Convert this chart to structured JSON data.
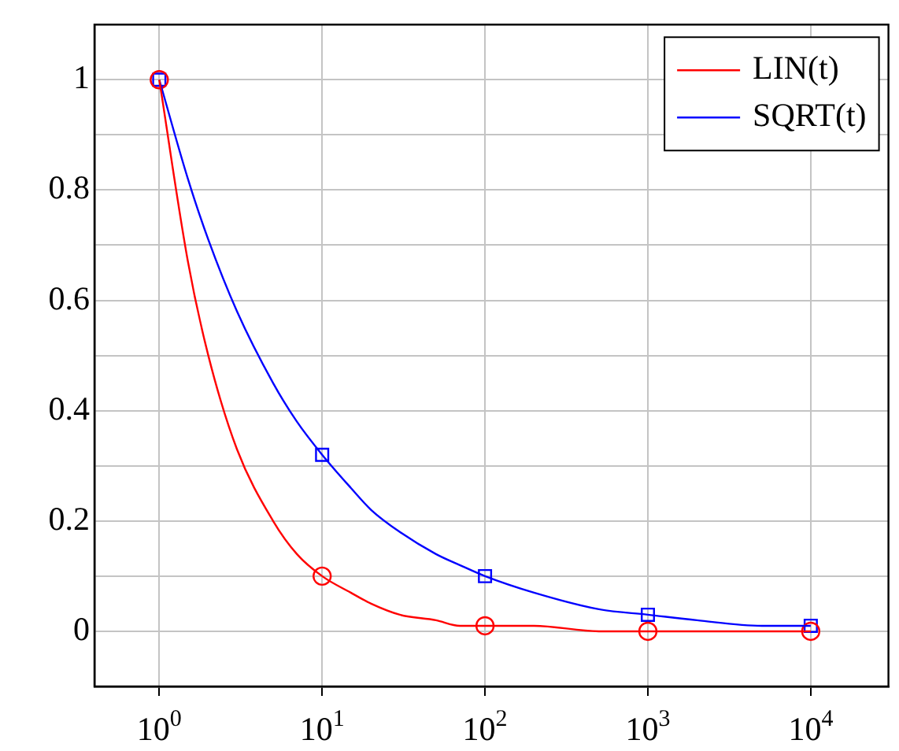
{
  "chart_data": {
    "type": "line",
    "log": "x",
    "grid": true,
    "legend": "top right",
    "xlim": [
      0.4,
      30000
    ],
    "xticks": [
      {
        "value": 1,
        "label": "10$^{0}$"
      },
      {
        "value": 10,
        "label": "10$^{1}$"
      },
      {
        "value": 100,
        "label": "10$^{2}$"
      },
      {
        "value": 1000,
        "label": "10$^{3}$"
      },
      {
        "value": 10000,
        "label": "10$^{4}$"
      }
    ],
    "ylim": [
      -0.1,
      1.1
    ],
    "yticks": [
      0,
      {
        "value": 0.1,
        "label": null
      },
      0.2,
      {
        "value": 0.3,
        "label": null
      },
      0.4,
      {
        "value": 0.5,
        "label": null
      },
      0.6,
      {
        "value": 0.7,
        "label": null
      },
      0.8,
      {
        "value": 0.9,
        "label": null
      },
      1
    ],
    "series": [
      {
        "name": "LIN(t)",
        "color": "#ff0000",
        "marker": "none",
        "x": [
          1,
          1.5,
          2,
          3,
          5,
          7,
          10,
          15,
          20,
          30,
          50,
          70,
          100,
          200,
          500,
          1000,
          2000,
          5000,
          10000
        ],
        "values": [
          1,
          0.67,
          0.5,
          0.33,
          0.2,
          0.14,
          0.1,
          0.07,
          0.05,
          0.03,
          0.02,
          0.01,
          0.01,
          0.01,
          0,
          0,
          0,
          0,
          0
        ]
      },
      {
        "name": "SQRT(t)",
        "color": "#0000ff",
        "marker": "none",
        "x": [
          1,
          1.5,
          2,
          3,
          5,
          7,
          10,
          15,
          20,
          30,
          50,
          70,
          100,
          200,
          500,
          1000,
          2000,
          5000,
          10000
        ],
        "values": [
          1,
          0.82,
          0.71,
          0.58,
          0.45,
          0.38,
          0.32,
          0.26,
          0.22,
          0.18,
          0.14,
          0.12,
          0.1,
          0.07,
          0.04,
          0.03,
          0.02,
          0.01,
          0.01
        ]
      },
      {
        "type": "scatter",
        "color": "#ff0000",
        "marker": "circle",
        "x": [
          1,
          10,
          100,
          1000,
          10000
        ],
        "values": [
          1,
          0.1,
          0.01,
          0,
          0
        ]
      },
      {
        "type": "scatter",
        "color": "#0000ff",
        "marker": "square",
        "x": [
          1,
          10,
          100,
          1000,
          10000
        ],
        "values": [
          1,
          0.32,
          0.1,
          0.03,
          0.01
        ]
      }
    ]
  }
}
